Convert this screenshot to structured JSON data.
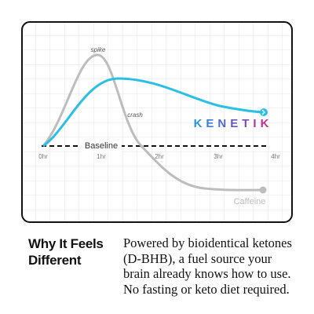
{
  "chart": {
    "spike": "spike",
    "crash": "crash",
    "baseline": "Baseline",
    "brand": "KENETIK",
    "caffeine_label": "Caffeine",
    "x_labels": [
      "0hr",
      "1hr",
      "2hr",
      "3hr",
      "4hr"
    ]
  },
  "heading": [
    "Why It Feels",
    "Different"
  ],
  "body": [
    "Powered by bioidentical ketones",
    "(D-BHB), a fuel source your",
    "brain already knows how to use.",
    "No fasting or keto diet required."
  ]
}
